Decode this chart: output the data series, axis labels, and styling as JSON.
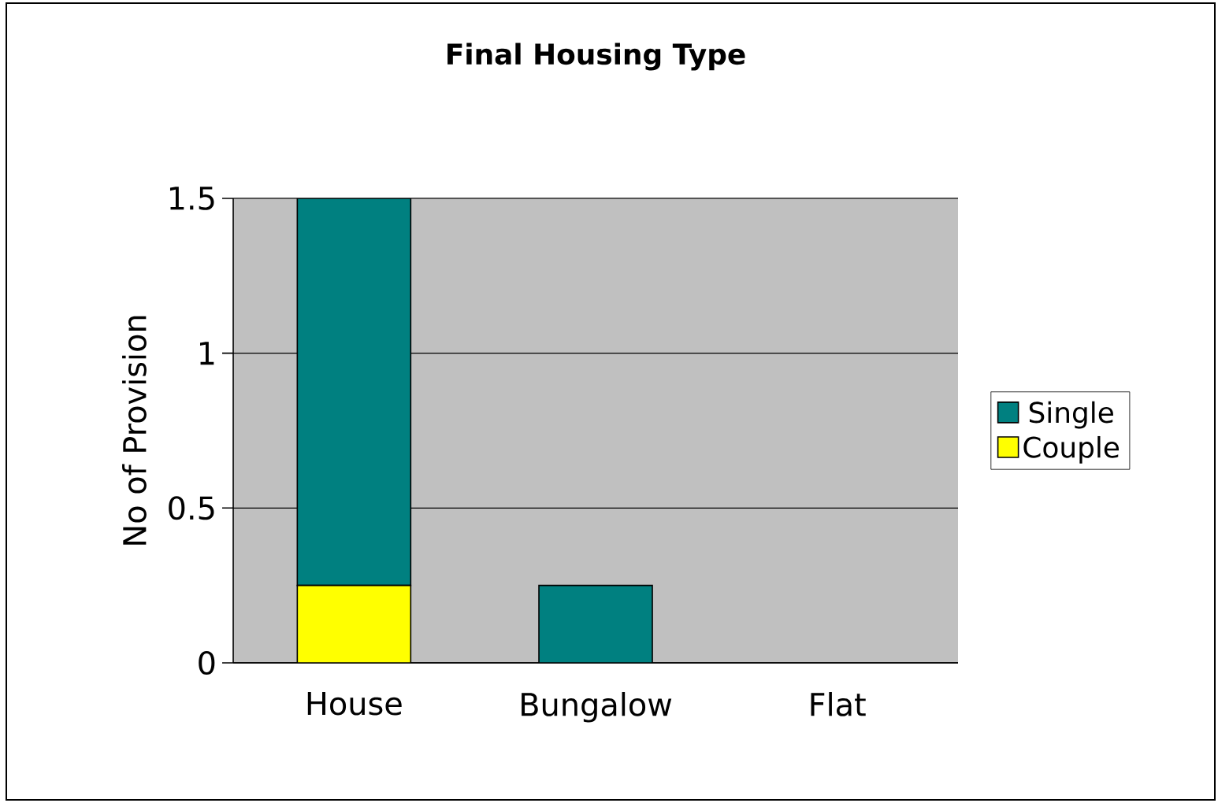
{
  "chart_data": {
    "type": "bar",
    "title": "Final  Housing Type",
    "ylabel": "No of Provision",
    "categories": [
      "House",
      "Bungalow",
      "Flat"
    ],
    "stacked": true,
    "series": [
      {
        "name": "Couple",
        "color": "#ffff00",
        "values": [
          0.25,
          0,
          0
        ]
      },
      {
        "name": "Single",
        "color": "#008080",
        "values": [
          1.25,
          0.25,
          0
        ]
      }
    ],
    "ylim": [
      0,
      1.5
    ],
    "yticks": [
      0,
      0.5,
      1,
      1.5
    ],
    "grid": "y",
    "legend": "right"
  }
}
